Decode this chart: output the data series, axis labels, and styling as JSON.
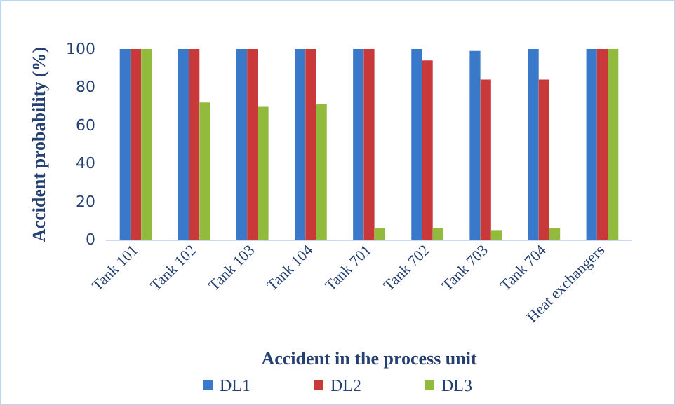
{
  "chart_data": {
    "type": "bar",
    "xlabel": "Accident in the process unit",
    "ylabel": "Accident probability (%)",
    "categories": [
      "Tank 101",
      "Tank 102",
      "Tank 103",
      "Tank 104",
      "Tank 701",
      "Tank 702",
      "Tank 703",
      "Tank 704",
      "Heat exchangers"
    ],
    "series": [
      {
        "name": "DL1",
        "color": "#3a78c9",
        "values": [
          100,
          100,
          100,
          100,
          100,
          100,
          99,
          100,
          100
        ]
      },
      {
        "name": "DL2",
        "color": "#c9393a",
        "values": [
          100,
          100,
          100,
          100,
          100,
          94,
          84,
          84,
          100
        ]
      },
      {
        "name": "DL3",
        "color": "#92bb3e",
        "values": [
          100,
          72,
          70,
          71,
          6,
          6,
          5,
          6,
          100
        ]
      }
    ],
    "ylim": [
      0,
      100
    ],
    "yticks": [
      0,
      20,
      40,
      60,
      80,
      100
    ],
    "grid": false,
    "legend": "bottom"
  }
}
